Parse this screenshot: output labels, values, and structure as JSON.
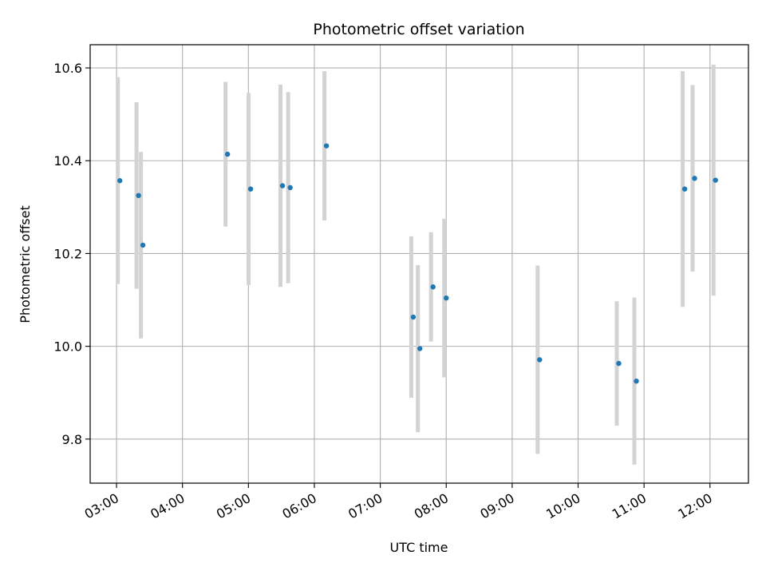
{
  "chart_data": {
    "type": "scatter",
    "title": "Photometric offset variation",
    "xlabel": "UTC time",
    "ylabel": "Photometric offset",
    "xlim": [
      "02:36",
      "12:35"
    ],
    "ylim": [
      9.705,
      10.65
    ],
    "grid": true,
    "x_ticks": [
      "03:00",
      "04:00",
      "05:00",
      "06:00",
      "07:00",
      "08:00",
      "09:00",
      "10:00",
      "11:00",
      "12:00"
    ],
    "y_ticks": [
      "9.8",
      "10.0",
      "10.2",
      "10.4",
      "10.6"
    ],
    "marker_color": "#1f77b4",
    "errorbar_color": "#d3d3d3",
    "series": [
      {
        "points": [
          {
            "x": "03:03",
            "y": 10.357,
            "yerr": 0.223
          },
          {
            "x": "03:20",
            "y": 10.325,
            "yerr": 0.201
          },
          {
            "x": "03:24",
            "y": 10.218,
            "yerr": 0.201
          },
          {
            "x": "04:41",
            "y": 10.414,
            "yerr": 0.156
          },
          {
            "x": "05:02",
            "y": 10.339,
            "yerr": 0.207
          },
          {
            "x": "05:31",
            "y": 10.346,
            "yerr": 0.218
          },
          {
            "x": "05:38",
            "y": 10.342,
            "yerr": 0.206
          },
          {
            "x": "06:11",
            "y": 10.432,
            "yerr": 0.161
          },
          {
            "x": "07:30",
            "y": 10.063,
            "yerr": 0.174
          },
          {
            "x": "07:36",
            "y": 9.995,
            "yerr": 0.18
          },
          {
            "x": "07:48",
            "y": 10.128,
            "yerr": 0.118
          },
          {
            "x": "08:00",
            "y": 10.104,
            "yerr": 0.171
          },
          {
            "x": "09:25",
            "y": 9.971,
            "yerr": 0.203
          },
          {
            "x": "10:37",
            "y": 9.963,
            "yerr": 0.134
          },
          {
            "x": "10:53",
            "y": 9.925,
            "yerr": 0.18
          },
          {
            "x": "11:37",
            "y": 10.339,
            "yerr": 0.254
          },
          {
            "x": "11:46",
            "y": 10.362,
            "yerr": 0.201
          },
          {
            "x": "12:05",
            "y": 10.358,
            "yerr": 0.249
          }
        ]
      }
    ]
  }
}
